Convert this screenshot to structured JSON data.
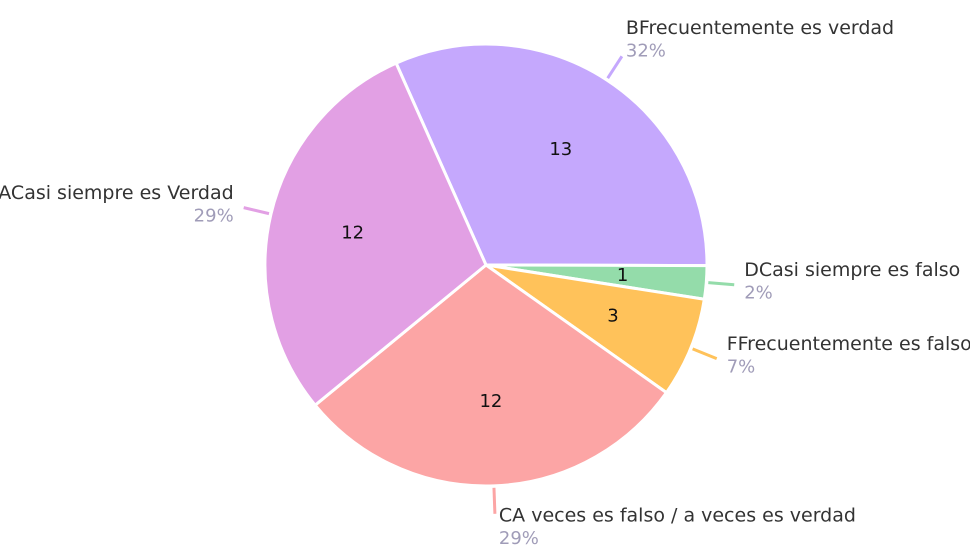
{
  "chart_data": {
    "type": "pie",
    "categories": [
      "BFrecuentemente es verdad",
      "DCasi siempre es falso",
      "FFrecuentemente es falso",
      "CA veces es falso / a veces es verdad",
      "ACasi siempre es Verdad"
    ],
    "values": [
      13,
      1,
      3,
      12,
      12
    ],
    "percent_labels": [
      "32%",
      "2%",
      "7%",
      "29%",
      "29%"
    ],
    "colors": [
      "#c5a8fd",
      "#94dcaa",
      "#ffc25a",
      "#fca5a5",
      "#e2a0e4"
    ]
  }
}
